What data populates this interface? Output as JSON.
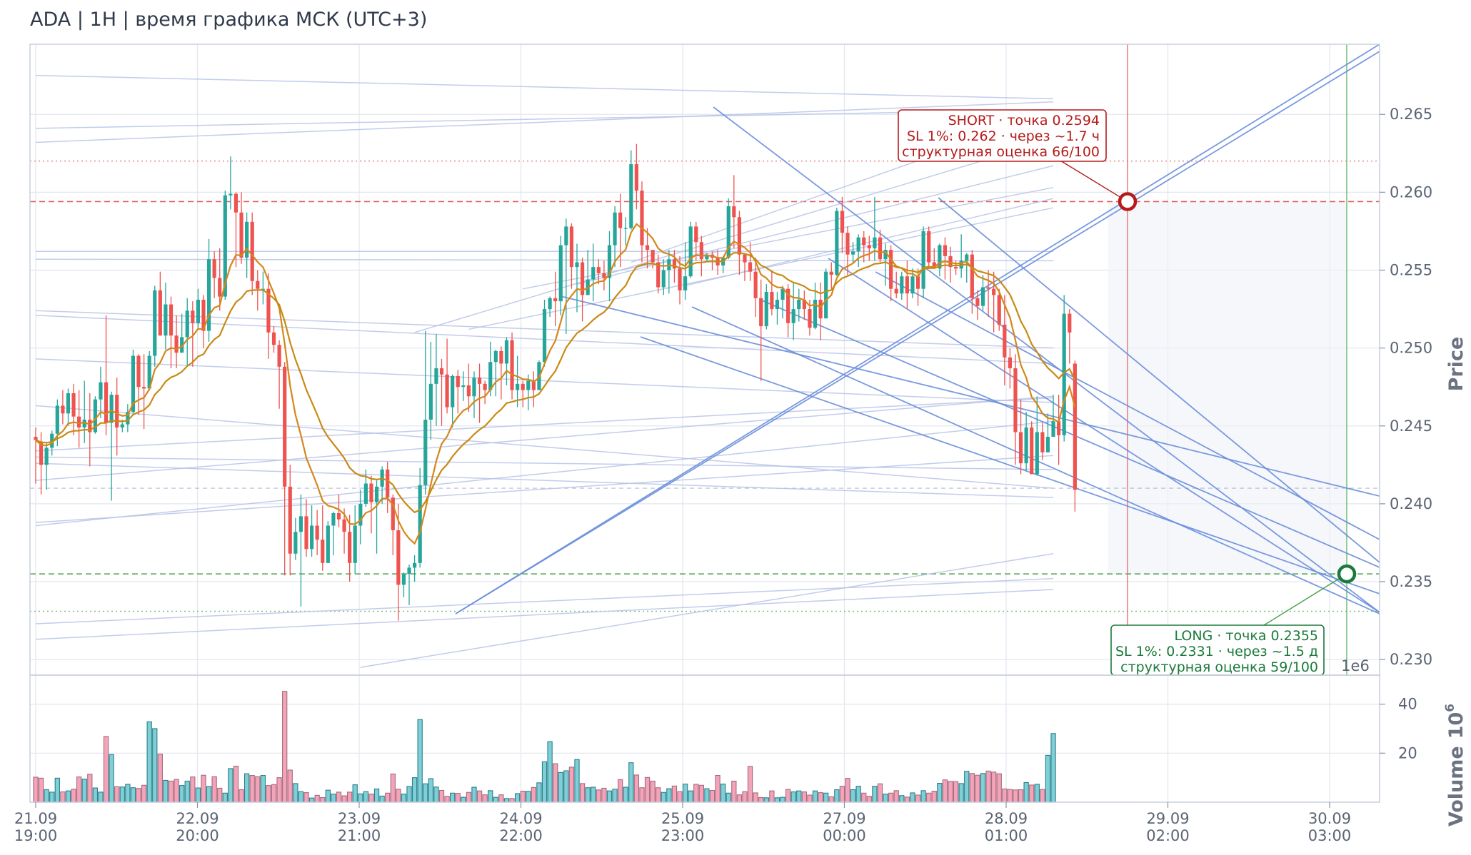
{
  "title": "ADA | 1H | время графика МСК (UTC+3)",
  "chart_data": {
    "type": "candlestick",
    "title": "ADA | 1H | время графика МСК (UTC+3)",
    "ylabel": "Price",
    "volume_label": "Volume",
    "volume_exponent": "1e6",
    "volume_scale_label": "10",
    "volume_scale_exp": "6",
    "ylim": [
      0.229,
      0.2695
    ],
    "yticks": [
      "0.230",
      "0.235",
      "0.240",
      "0.245",
      "0.250",
      "0.255",
      "0.260",
      "0.265"
    ],
    "volume_ticks": [
      "20",
      "40"
    ],
    "volume_ylim": [
      0,
      46
    ],
    "xticks": [
      {
        "date": "21.09",
        "time": "19:00"
      },
      {
        "date": "22.09",
        "time": "20:00"
      },
      {
        "date": "23.09",
        "time": "21:00"
      },
      {
        "date": "24.09",
        "time": "22:00"
      },
      {
        "date": "25.09",
        "time": "23:00"
      },
      {
        "date": "27.09",
        "time": "00:00"
      },
      {
        "date": "28.09",
        "time": "01:00"
      },
      {
        "date": "29.09",
        "time": "02:00"
      },
      {
        "date": "30.09",
        "time": "03:00"
      }
    ],
    "candles": [
      [
        0.2443,
        0.2441,
        0.2449,
        0.2413
      ],
      [
        0.244,
        0.2425,
        0.2446,
        0.2406
      ],
      [
        0.2425,
        0.2436,
        0.2439,
        0.2409
      ],
      [
        0.2436,
        0.2445,
        0.2447,
        0.2431
      ],
      [
        0.2445,
        0.2463,
        0.2467,
        0.2437
      ],
      [
        0.2463,
        0.2458,
        0.2473,
        0.2451
      ],
      [
        0.2458,
        0.2471,
        0.2474,
        0.245
      ],
      [
        0.2471,
        0.2456,
        0.2477,
        0.2444
      ],
      [
        0.2456,
        0.2449,
        0.2473,
        0.2436
      ],
      [
        0.2449,
        0.2454,
        0.2479,
        0.2439
      ],
      [
        0.2454,
        0.2446,
        0.2471,
        0.2424
      ],
      [
        0.2446,
        0.2467,
        0.2469,
        0.2445
      ],
      [
        0.2467,
        0.2478,
        0.2488,
        0.2455
      ],
      [
        0.2478,
        0.2452,
        0.2521,
        0.2444
      ],
      [
        0.2452,
        0.247,
        0.2472,
        0.2402
      ],
      [
        0.247,
        0.2449,
        0.2481,
        0.2431
      ],
      [
        0.2449,
        0.2451,
        0.2454,
        0.2446
      ],
      [
        0.2451,
        0.2459,
        0.2464,
        0.2446
      ],
      [
        0.2459,
        0.2495,
        0.2499,
        0.2458
      ],
      [
        0.2495,
        0.2475,
        0.2496,
        0.2457
      ],
      [
        0.2475,
        0.2474,
        0.2496,
        0.2448
      ],
      [
        0.2474,
        0.2495,
        0.2498,
        0.2473
      ],
      [
        0.2495,
        0.2537,
        0.254,
        0.2488
      ],
      [
        0.2537,
        0.2508,
        0.2549,
        0.2508
      ],
      [
        0.2508,
        0.2528,
        0.2542,
        0.2499
      ],
      [
        0.2528,
        0.2508,
        0.2533,
        0.2487
      ],
      [
        0.2508,
        0.2497,
        0.2521,
        0.2487
      ],
      [
        0.2497,
        0.2507,
        0.2522,
        0.2497
      ],
      [
        0.2507,
        0.2524,
        0.2532,
        0.2489
      ],
      [
        0.2524,
        0.2516,
        0.253,
        0.2488
      ],
      [
        0.2516,
        0.2531,
        0.2538,
        0.2513
      ],
      [
        0.2531,
        0.2511,
        0.2534,
        0.25
      ],
      [
        0.2511,
        0.2557,
        0.257,
        0.2504
      ],
      [
        0.2557,
        0.2545,
        0.2562,
        0.2532
      ],
      [
        0.2545,
        0.2533,
        0.2564,
        0.2524
      ],
      [
        0.2533,
        0.2598,
        0.2601,
        0.2531
      ],
      [
        0.2598,
        0.2599,
        0.2623,
        0.2589
      ],
      [
        0.2599,
        0.2587,
        0.26,
        0.2552
      ],
      [
        0.2587,
        0.2558,
        0.26,
        0.2554
      ],
      [
        0.2558,
        0.2581,
        0.2587,
        0.2545
      ],
      [
        0.2581,
        0.2543,
        0.2587,
        0.2534
      ],
      [
        0.2543,
        0.2538,
        0.255,
        0.2524
      ],
      [
        0.2538,
        0.2538,
        0.2549,
        0.2528
      ],
      [
        0.2538,
        0.251,
        0.2548,
        0.2493
      ],
      [
        0.251,
        0.2502,
        0.2514,
        0.2497
      ],
      [
        0.2502,
        0.2488,
        0.2505,
        0.2461
      ],
      [
        0.2488,
        0.2411,
        0.2491,
        0.2354
      ],
      [
        0.2411,
        0.2368,
        0.2425,
        0.2354
      ],
      [
        0.2368,
        0.2382,
        0.2391,
        0.2364
      ],
      [
        0.2382,
        0.2392,
        0.2406,
        0.2334
      ],
      [
        0.2392,
        0.2371,
        0.2403,
        0.2366
      ],
      [
        0.2371,
        0.2386,
        0.2399,
        0.2366
      ],
      [
        0.2386,
        0.2377,
        0.2396,
        0.2367
      ],
      [
        0.2377,
        0.2362,
        0.2399,
        0.2357
      ],
      [
        0.2362,
        0.2386,
        0.2389,
        0.2362
      ],
      [
        0.2386,
        0.2394,
        0.2395,
        0.2367
      ],
      [
        0.2394,
        0.239,
        0.2406,
        0.2385
      ],
      [
        0.239,
        0.2382,
        0.2397,
        0.2368
      ],
      [
        0.2382,
        0.2362,
        0.2393,
        0.235
      ],
      [
        0.2362,
        0.2386,
        0.2399,
        0.2355
      ],
      [
        0.2386,
        0.24,
        0.2409,
        0.2374
      ],
      [
        0.24,
        0.2413,
        0.2422,
        0.2398
      ],
      [
        0.2413,
        0.2401,
        0.2418,
        0.2381
      ],
      [
        0.2401,
        0.2411,
        0.2415,
        0.2368
      ],
      [
        0.2411,
        0.2422,
        0.2424,
        0.24
      ],
      [
        0.2422,
        0.2404,
        0.2427,
        0.2394
      ],
      [
        0.2404,
        0.2383,
        0.2406,
        0.2367
      ],
      [
        0.2383,
        0.2348,
        0.24,
        0.2325
      ],
      [
        0.2348,
        0.2355,
        0.2356,
        0.234
      ],
      [
        0.2355,
        0.2359,
        0.2361,
        0.2335
      ],
      [
        0.2359,
        0.2362,
        0.2367,
        0.235
      ],
      [
        0.2362,
        0.2412,
        0.2423,
        0.2359
      ],
      [
        0.2412,
        0.2454,
        0.2511,
        0.2406
      ],
      [
        0.2454,
        0.2477,
        0.2504,
        0.2441
      ],
      [
        0.2477,
        0.2487,
        0.2509,
        0.245
      ],
      [
        0.2487,
        0.2483,
        0.2493,
        0.245
      ],
      [
        0.2483,
        0.2462,
        0.2506,
        0.2458
      ],
      [
        0.2462,
        0.2482,
        0.2483,
        0.2449
      ],
      [
        0.2482,
        0.2475,
        0.2486,
        0.2458
      ],
      [
        0.2475,
        0.2476,
        0.2485,
        0.2466
      ],
      [
        0.2476,
        0.2469,
        0.249,
        0.2459
      ],
      [
        0.2469,
        0.2481,
        0.2485,
        0.2455
      ],
      [
        0.2481,
        0.2477,
        0.249,
        0.2452
      ],
      [
        0.2477,
        0.2473,
        0.2479,
        0.2464
      ],
      [
        0.2473,
        0.2491,
        0.2504,
        0.2469
      ],
      [
        0.2491,
        0.2498,
        0.2499,
        0.2469
      ],
      [
        0.2498,
        0.249,
        0.2501,
        0.2467
      ],
      [
        0.249,
        0.2505,
        0.2507,
        0.2476
      ],
      [
        0.2505,
        0.2473,
        0.251,
        0.2467
      ],
      [
        0.2473,
        0.2477,
        0.2495,
        0.2462
      ],
      [
        0.2477,
        0.2473,
        0.2479,
        0.2462
      ],
      [
        0.2473,
        0.2479,
        0.2483,
        0.246
      ],
      [
        0.2479,
        0.2473,
        0.2485,
        0.2462
      ],
      [
        0.2473,
        0.2491,
        0.2492,
        0.2474
      ],
      [
        0.2491,
        0.2525,
        0.2531,
        0.2488
      ],
      [
        0.2525,
        0.2532,
        0.2533,
        0.252
      ],
      [
        0.2532,
        0.253,
        0.2549,
        0.2514
      ],
      [
        0.253,
        0.2566,
        0.2572,
        0.2521
      ],
      [
        0.2566,
        0.2578,
        0.2583,
        0.2509
      ],
      [
        0.2578,
        0.2552,
        0.258,
        0.2538
      ],
      [
        0.2552,
        0.2555,
        0.2567,
        0.2523
      ],
      [
        0.2555,
        0.2534,
        0.2558,
        0.2517
      ],
      [
        0.2534,
        0.2544,
        0.2563,
        0.2536
      ],
      [
        0.2544,
        0.2552,
        0.2567,
        0.253
      ],
      [
        0.2552,
        0.2548,
        0.2557,
        0.2541
      ],
      [
        0.2548,
        0.2545,
        0.2556,
        0.2537
      ],
      [
        0.2545,
        0.2566,
        0.2575,
        0.253
      ],
      [
        0.2566,
        0.2587,
        0.2591,
        0.2552
      ],
      [
        0.2587,
        0.2577,
        0.2599,
        0.2552
      ],
      [
        0.2577,
        0.2577,
        0.2584,
        0.2566
      ],
      [
        0.2577,
        0.2618,
        0.2627,
        0.2576
      ],
      [
        0.2618,
        0.2601,
        0.2631,
        0.2589
      ],
      [
        0.2601,
        0.2566,
        0.2607,
        0.2555
      ],
      [
        0.2566,
        0.2563,
        0.2577,
        0.2551
      ],
      [
        0.2563,
        0.2555,
        0.2563,
        0.2551
      ],
      [
        0.2555,
        0.2539,
        0.256,
        0.2535
      ],
      [
        0.2539,
        0.255,
        0.2557,
        0.2534
      ],
      [
        0.255,
        0.2557,
        0.2563,
        0.2535
      ],
      [
        0.2557,
        0.2551,
        0.2563,
        0.2542
      ],
      [
        0.2551,
        0.2537,
        0.2559,
        0.2528
      ],
      [
        0.2537,
        0.2546,
        0.2568,
        0.2531
      ],
      [
        0.2546,
        0.2578,
        0.2581,
        0.2545
      ],
      [
        0.2578,
        0.2568,
        0.2581,
        0.2556
      ],
      [
        0.2568,
        0.2557,
        0.2572,
        0.2546
      ],
      [
        0.2557,
        0.256,
        0.2561,
        0.2556
      ],
      [
        0.256,
        0.2558,
        0.2562,
        0.255
      ],
      [
        0.2558,
        0.2553,
        0.2563,
        0.2547
      ],
      [
        0.2553,
        0.2558,
        0.2559,
        0.2548
      ],
      [
        0.2558,
        0.2591,
        0.2596,
        0.2557
      ],
      [
        0.2591,
        0.2584,
        0.2611,
        0.2564
      ],
      [
        0.2584,
        0.256,
        0.2588,
        0.2547
      ],
      [
        0.256,
        0.2555,
        0.2561,
        0.2543
      ],
      [
        0.2555,
        0.2549,
        0.2568,
        0.2543
      ],
      [
        0.2549,
        0.2532,
        0.2558,
        0.252
      ],
      [
        0.2532,
        0.2514,
        0.2544,
        0.2479
      ],
      [
        0.2514,
        0.2536,
        0.2541,
        0.2512
      ],
      [
        0.2536,
        0.2525,
        0.255,
        0.2521
      ],
      [
        0.2525,
        0.2531,
        0.2536,
        0.2515
      ],
      [
        0.2531,
        0.2538,
        0.254,
        0.2519
      ],
      [
        0.2538,
        0.2516,
        0.2541,
        0.2507
      ],
      [
        0.2516,
        0.2525,
        0.2542,
        0.2505
      ],
      [
        0.2525,
        0.2531,
        0.2538,
        0.2517
      ],
      [
        0.2531,
        0.2525,
        0.2537,
        0.2518
      ],
      [
        0.2525,
        0.2513,
        0.2531,
        0.2508
      ],
      [
        0.2513,
        0.2531,
        0.2542,
        0.2512
      ],
      [
        0.2531,
        0.2519,
        0.2542,
        0.2505
      ],
      [
        0.2519,
        0.2549,
        0.2551,
        0.2519
      ],
      [
        0.2549,
        0.2547,
        0.2555,
        0.2538
      ],
      [
        0.2547,
        0.2588,
        0.259,
        0.2546
      ],
      [
        0.2588,
        0.2574,
        0.2597,
        0.2561
      ],
      [
        0.2574,
        0.256,
        0.2578,
        0.2547
      ],
      [
        0.256,
        0.2562,
        0.2568,
        0.2555
      ],
      [
        0.2562,
        0.2571,
        0.2573,
        0.2552
      ],
      [
        0.2571,
        0.2566,
        0.2575,
        0.2555
      ],
      [
        0.2566,
        0.2564,
        0.2572,
        0.2556
      ],
      [
        0.2564,
        0.2571,
        0.2597,
        0.2556
      ],
      [
        0.2571,
        0.2557,
        0.2576,
        0.2555
      ],
      [
        0.2557,
        0.2563,
        0.2567,
        0.254
      ],
      [
        0.2563,
        0.2538,
        0.2566,
        0.253
      ],
      [
        0.2538,
        0.2535,
        0.2549,
        0.2532
      ],
      [
        0.2535,
        0.2546,
        0.2549,
        0.2531
      ],
      [
        0.2546,
        0.2535,
        0.2556,
        0.2525
      ],
      [
        0.2535,
        0.2546,
        0.2551,
        0.2532
      ],
      [
        0.2546,
        0.2538,
        0.2551,
        0.2527
      ],
      [
        0.2538,
        0.2575,
        0.2578,
        0.2532
      ],
      [
        0.2575,
        0.2555,
        0.2578,
        0.2551
      ],
      [
        0.2555,
        0.2551,
        0.2564,
        0.2551
      ],
      [
        0.2551,
        0.2566,
        0.2567,
        0.2546
      ],
      [
        0.2566,
        0.2559,
        0.2571,
        0.2544
      ],
      [
        0.2559,
        0.2552,
        0.2565,
        0.2542
      ],
      [
        0.2552,
        0.2551,
        0.2556,
        0.2547
      ],
      [
        0.2551,
        0.2556,
        0.2573,
        0.2545
      ],
      [
        0.2556,
        0.256,
        0.2561,
        0.2542
      ],
      [
        0.256,
        0.2532,
        0.2563,
        0.2522
      ],
      [
        0.2532,
        0.2527,
        0.2537,
        0.2518
      ],
      [
        0.2527,
        0.2539,
        0.2547,
        0.2524
      ],
      [
        0.2539,
        0.2538,
        0.255,
        0.252
      ],
      [
        0.2538,
        0.2534,
        0.2549,
        0.251
      ],
      [
        0.2534,
        0.2515,
        0.2538,
        0.2511
      ],
      [
        0.2515,
        0.2494,
        0.2534,
        0.2476
      ],
      [
        0.2494,
        0.2487,
        0.25,
        0.2474
      ],
      [
        0.2487,
        0.2446,
        0.2496,
        0.2425
      ],
      [
        0.2446,
        0.2426,
        0.2467,
        0.2419
      ],
      [
        0.2426,
        0.2449,
        0.2459,
        0.2421
      ],
      [
        0.2449,
        0.2419,
        0.2453,
        0.2424
      ],
      [
        0.2419,
        0.2446,
        0.2469,
        0.2418
      ],
      [
        0.2446,
        0.2433,
        0.2452,
        0.2428
      ],
      [
        0.2433,
        0.2443,
        0.2458,
        0.2438
      ],
      [
        0.2443,
        0.2453,
        0.247,
        0.245
      ],
      [
        0.2453,
        0.2444,
        0.247,
        0.2425
      ],
      [
        0.2444,
        0.2522,
        0.2534,
        0.244
      ],
      [
        0.2522,
        0.251,
        0.2525,
        0.249
      ],
      [
        0.249,
        0.2409,
        0.2492,
        0.2395
      ]
    ],
    "volumes": [
      10.2,
      9.8,
      5.1,
      4.1,
      9.8,
      4.2,
      4.6,
      5.3,
      10.3,
      9.4,
      11.4,
      5.8,
      4.1,
      26.8,
      19.4,
      6.3,
      6.2,
      7.3,
      5.9,
      5.6,
      6.9,
      32.8,
      30.0,
      19.6,
      8.9,
      8.6,
      9.3,
      6.8,
      8.6,
      10.3,
      5.8,
      11.0,
      6.4,
      10.4,
      5.7,
      3.7,
      13.7,
      14.7,
      5.1,
      11.6,
      10.9,
      10.4,
      10.9,
      6.8,
      7.2,
      10.0,
      45.2,
      13.1,
      7.6,
      4.3,
      3.9,
      1.7,
      2.8,
      1.9,
      4.9,
      3.3,
      4.1,
      2.6,
      4.1,
      7.1,
      3.4,
      4.3,
      3.3,
      5.4,
      2.5,
      3.7,
      11.5,
      5.3,
      3.3,
      6.4,
      10.0,
      33.7,
      7.5,
      9.6,
      6.2,
      4.8,
      2.4,
      3.7,
      3.6,
      2.0,
      4.0,
      6.1,
      4.6,
      3.0,
      4.7,
      2.0,
      3.0,
      1.5,
      1.5,
      3.5,
      4.5,
      4.4,
      6.0,
      7.9,
      16.5,
      24.7,
      15.7,
      12.1,
      12.8,
      14.3,
      17.4,
      7.6,
      5.9,
      6.1,
      5.0,
      5.7,
      4.6,
      5.3,
      9.2,
      6.1,
      16.1,
      11.1,
      5.9,
      10.1,
      8.6,
      5.9,
      4.0,
      5.5,
      6.6,
      4.3,
      7.4,
      4.6,
      7.3,
      6.9,
      5.5,
      4.8,
      10.9,
      7.4,
      3.7,
      8.6,
      3.0,
      4.3,
      14.6,
      3.8,
      1.9,
      1.8,
      4.6,
      1.8,
      2.0,
      5.2,
      4.2,
      4.6,
      4.2,
      2.9,
      4.6,
      3.9,
      3.7,
      2.2,
      5.1,
      6.5,
      9.7,
      5.1,
      6.5,
      3.7,
      2.4,
      6.5,
      7.5,
      3.3,
      3.7,
      4.7,
      2.7,
      2.1,
      3.8,
      2.9,
      4.7,
      3.7,
      4.5,
      7.7,
      9.1,
      8.5,
      8.4,
      7.6,
      12.6,
      11.7,
      11.0,
      11.7,
      12.7,
      12.3,
      11.6,
      5.4,
      5.2,
      5.0,
      5.1,
      8.0,
      7.0,
      7.3,
      5.2,
      19.1,
      28.0
    ]
  },
  "annotations": {
    "short": {
      "entry": 0.2594,
      "sl": 0.262,
      "line1": "SHORT · точка 0.2594",
      "line2": "SL 1%: 0.262 · через ~1.7 ч",
      "line3": "структурная оценка 66/100",
      "color": "#b51b1b"
    },
    "long": {
      "entry": 0.2355,
      "sl": 0.2331,
      "line1": "LONG · точка 0.2355",
      "line2": "SL 1%: 0.2331 · через ~1.5 д",
      "line3": "структурная оценка 59/100",
      "color": "#1a7a3a"
    }
  },
  "colors": {
    "up": "#26a69a",
    "down": "#ef5350",
    "vol_up": "#7fd0d6",
    "vol_down": "#f3a4b8",
    "ema_fast": "#d4871a",
    "ema_slow": "#c88a14",
    "trend": "#6b8fdc",
    "faint": "#b8c4e8",
    "grid": "#e3e6ee"
  }
}
